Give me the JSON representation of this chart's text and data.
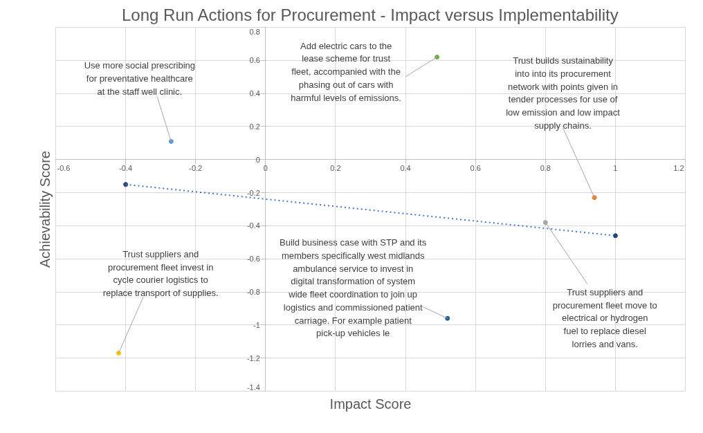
{
  "chart_data": {
    "type": "scatter",
    "title": "Long Run Actions for Procurement - Impact versus Implementability",
    "xlabel": "Impact Score",
    "ylabel": "Achievability Score",
    "xlim": [
      -0.6,
      1.2
    ],
    "ylim": [
      -1.4,
      0.8
    ],
    "xticks": [
      -0.6,
      -0.4,
      -0.2,
      0,
      0.2,
      0.4,
      0.6,
      0.8,
      1,
      1.2
    ],
    "yticks": [
      -1.4,
      -1.2,
      -1,
      -0.8,
      -0.6,
      -0.4,
      -0.2,
      0,
      0.2,
      0.4,
      0.6,
      0.8
    ],
    "grid": true,
    "series": [
      {
        "type": "scatter",
        "marker": "circle",
        "x": [
          -0.27,
          0.49,
          0.94,
          0.8,
          1.0,
          -0.4,
          0.52,
          -0.42
        ],
        "values": [
          0.11,
          0.62,
          -0.23,
          -0.38,
          -0.46,
          -0.15,
          -0.96,
          -1.17
        ],
        "colors": [
          "#5b9bd5",
          "#70ad47",
          "#ed7d31",
          "#a5a5a5",
          "#264478",
          "#264478",
          "#255e91",
          "#ffc000"
        ]
      },
      {
        "type": "line",
        "x": [
          -0.4,
          1.0
        ],
        "values": [
          -0.15,
          -0.46
        ],
        "color": "#4472c4",
        "line_style": "dotted"
      }
    ],
    "annotations": [
      {
        "text": "Use more social prescribing for preventative healthcare at the staff well clinic.",
        "x": -0.27,
        "y": 0.11
      },
      {
        "text": "Add electric cars to the lease scheme for trust fleet, accompanied with the phasing out of cars with harmful levels of emissions.",
        "x": 0.49,
        "y": 0.62
      },
      {
        "text": "Trust builds sustainability into into its procurement network with points given in tender processes for use of low emission and low impact supply chains.",
        "x": 0.94,
        "y": -0.23
      },
      {
        "text": "Trust suppliers and procurement fleet move to electrical or hydrogen fuel to replace diesel lorries and vans.",
        "x": 0.8,
        "y": -0.38
      },
      {
        "text": "Build business case with STP and its members specifically west midlands ambulance service to invest in digital transformation of system wide fleet coordination to join up logistics and commissioned patient carriage. For example patient pick-up vehicles le",
        "x": 0.52,
        "y": -0.96
      },
      {
        "text": "Trust suppliers and procurement fleet invest in cycle courier logistics to replace transport of supplies.",
        "x": -0.42,
        "y": -1.17
      }
    ]
  }
}
